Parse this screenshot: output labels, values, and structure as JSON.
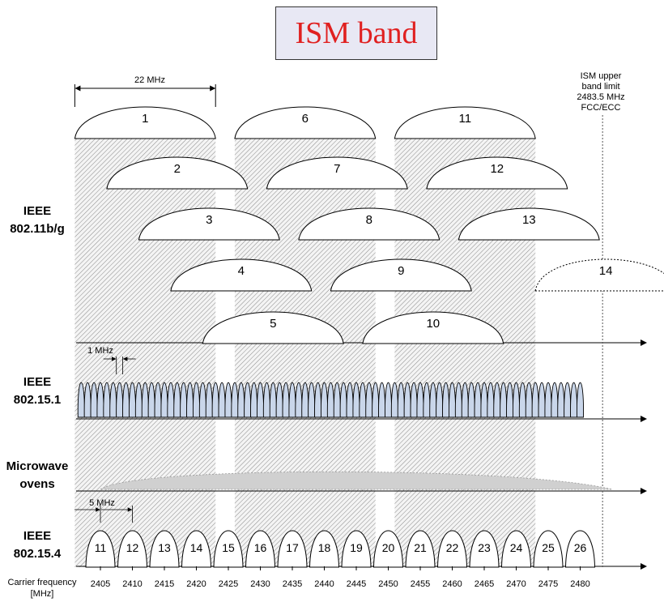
{
  "title": "ISM band",
  "annotations": {
    "width_22": "22 MHz",
    "width_1": "1 MHz",
    "width_5": "5 MHz",
    "ism_limit": [
      "ISM upper",
      "band limit",
      "2483.5 MHz",
      "FCC/ECC"
    ]
  },
  "rows": {
    "wifi": [
      "IEEE",
      "802.11b/g"
    ],
    "bt": [
      "IEEE",
      "802.15.1"
    ],
    "mw": [
      "Microwave",
      "ovens"
    ],
    "zigbee": [
      "IEEE",
      "802.15.4"
    ]
  },
  "axis": {
    "label": [
      "Carrier frequency",
      "[MHz]"
    ]
  },
  "chart_data": {
    "type": "diagram",
    "wifi_channels": [
      {
        "channel": "1",
        "center_mhz": 2412
      },
      {
        "channel": "2",
        "center_mhz": 2417
      },
      {
        "channel": "3",
        "center_mhz": 2422
      },
      {
        "channel": "4",
        "center_mhz": 2427
      },
      {
        "channel": "5",
        "center_mhz": 2432
      },
      {
        "channel": "6",
        "center_mhz": 2437
      },
      {
        "channel": "7",
        "center_mhz": 2442
      },
      {
        "channel": "8",
        "center_mhz": 2447
      },
      {
        "channel": "9",
        "center_mhz": 2452
      },
      {
        "channel": "10",
        "center_mhz": 2457
      },
      {
        "channel": "11",
        "center_mhz": 2462
      },
      {
        "channel": "12",
        "center_mhz": 2467
      },
      {
        "channel": "13",
        "center_mhz": 2472
      },
      {
        "channel": "14",
        "center_mhz": 2484,
        "dotted": true
      }
    ],
    "wifi_channel_width_mhz": 22,
    "bt_channel_spacing_mhz": 1,
    "bt_range_mhz": [
      2402,
      2480
    ],
    "zigbee_channels": [
      {
        "channel": "11",
        "center_mhz": 2405
      },
      {
        "channel": "12",
        "center_mhz": 2410
      },
      {
        "channel": "13",
        "center_mhz": 2415
      },
      {
        "channel": "14",
        "center_mhz": 2420
      },
      {
        "channel": "15",
        "center_mhz": 2425
      },
      {
        "channel": "16",
        "center_mhz": 2430
      },
      {
        "channel": "17",
        "center_mhz": 2435
      },
      {
        "channel": "18",
        "center_mhz": 2440
      },
      {
        "channel": "19",
        "center_mhz": 2445
      },
      {
        "channel": "20",
        "center_mhz": 2450
      },
      {
        "channel": "21",
        "center_mhz": 2455
      },
      {
        "channel": "22",
        "center_mhz": 2460
      },
      {
        "channel": "23",
        "center_mhz": 2465
      },
      {
        "channel": "24",
        "center_mhz": 2470
      },
      {
        "channel": "25",
        "center_mhz": 2475
      },
      {
        "channel": "26",
        "center_mhz": 2480
      }
    ],
    "zigbee_spacing_mhz": 5,
    "ticks": [
      "2405",
      "2410",
      "2415",
      "2420",
      "2425",
      "2430",
      "2435",
      "2440",
      "2445",
      "2450",
      "2455",
      "2460",
      "2465",
      "2470",
      "2475",
      "2480"
    ],
    "ism_upper_limit_mhz": 2483.5,
    "non_overlapping_bands": [
      [
        "1"
      ],
      [
        "6"
      ],
      [
        "11"
      ]
    ]
  }
}
